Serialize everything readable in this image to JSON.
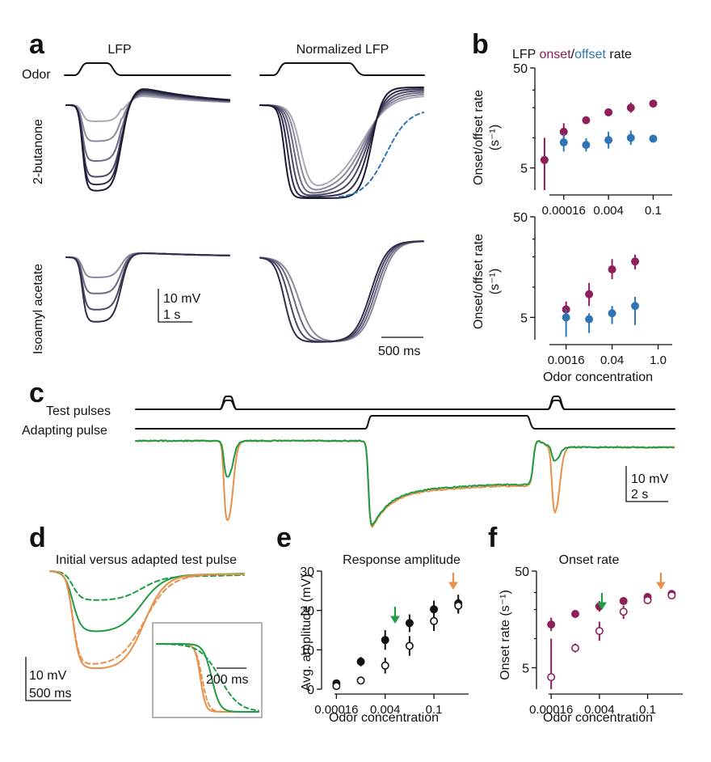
{
  "panels": {
    "a": {
      "label": "a",
      "col_titles": [
        "LFP",
        "Normalized LFP"
      ],
      "odor_label": "Odor",
      "row_labels": [
        "2-butanone",
        "Isoamyl acetate"
      ],
      "scalebar_left": [
        "10 mV",
        "1 s"
      ],
      "scalebar_right": "500 ms"
    },
    "b": {
      "label": "b",
      "title_prefix": "LFP ",
      "title_onset": "onset",
      "title_sep": "/",
      "title_offset": "offset",
      "title_suffix": " rate",
      "ylabel": "Onset/offset rate",
      "yunit": "(s⁻¹)",
      "xlabel": "Odor concentration"
    },
    "c": {
      "label": "c",
      "row_labels": [
        "Test pulses",
        "Adapting pulse"
      ],
      "scalebar": [
        "10 mV",
        "2 s"
      ]
    },
    "d": {
      "label": "d",
      "title": "Initial versus adapted test pulse",
      "scalebar": [
        "10 mV",
        "500 ms"
      ],
      "inset_scalebar": "200 ms"
    },
    "e": {
      "label": "e",
      "title": "Response amplitude",
      "ylabel": "Avg. amplitude (mV)",
      "xlabel": "Odor concentration"
    },
    "f": {
      "label": "f",
      "title": "Onset rate",
      "ylabel": "Onset rate (s⁻¹)",
      "xlabel": "Odor concentration"
    }
  },
  "colors": {
    "onset": "#8e1f5a",
    "offset": "#2f75b5",
    "green": "#1f9a45",
    "orange": "#e8904a",
    "dark": "#1b1b33"
  },
  "chart_data": [
    {
      "id": "b-top",
      "type": "scatter",
      "yscale": "log",
      "ylim": [
        3,
        50
      ],
      "yticks": [
        "5",
        "50"
      ],
      "categories": [
        "0.00016",
        "0.0008",
        "0.004",
        "0.02",
        "0.1"
      ],
      "xticks": [
        "0.00016",
        "0.004",
        "0.1"
      ],
      "series": [
        {
          "name": "onset",
          "x": [
            4e-05,
            0.00016,
            0.0008,
            0.004,
            0.02,
            0.1
          ],
          "y": [
            6,
            11.5,
            15,
            18,
            20,
            22
          ],
          "err": [
            [
              3,
              10
            ],
            [
              9.5,
              14
            ],
            [
              13.8,
              16.3
            ],
            [
              16.8,
              19.3
            ],
            [
              17.8,
              22.5
            ],
            [
              20.2,
              24
            ]
          ]
        },
        {
          "name": "offset",
          "x": [
            0.00016,
            0.0008,
            0.004,
            0.02,
            0.1
          ],
          "y": [
            9,
            8.5,
            9.5,
            10,
            9.8
          ],
          "err": [
            [
              7.3,
              11
            ],
            [
              7.3,
              9.9
            ],
            [
              7.8,
              11.5
            ],
            [
              8.5,
              11.8
            ],
            [
              9,
              10.7
            ]
          ]
        }
      ]
    },
    {
      "id": "b-bottom",
      "type": "scatter",
      "yscale": "log",
      "ylim": [
        3,
        50
      ],
      "yticks": [
        "5",
        "50"
      ],
      "xticks": [
        "0.0016",
        "0.04",
        "1.0"
      ],
      "series": [
        {
          "name": "onset",
          "x": [
            0.0016,
            0.008,
            0.04,
            0.2
          ],
          "y": [
            6,
            8.5,
            15,
            18
          ],
          "err": [
            [
              5.1,
              7.2
            ],
            [
              6.5,
              11
            ],
            [
              12,
              19
            ],
            [
              15,
              21
            ]
          ]
        },
        {
          "name": "offset",
          "x": [
            0.0016,
            0.008,
            0.04,
            0.2
          ],
          "y": [
            5,
            4.8,
            5.5,
            6.5
          ],
          "err": [
            [
              3.2,
              6
            ],
            [
              3.5,
              5.5
            ],
            [
              4.3,
              6.5
            ],
            [
              4.2,
              8
            ]
          ]
        }
      ]
    },
    {
      "id": "e",
      "type": "scatter",
      "ylim": [
        0,
        30
      ],
      "yticks": [
        "0",
        "10",
        "20",
        "30"
      ],
      "xticks": [
        "0.00016",
        "0.004",
        "0.1"
      ],
      "series": [
        {
          "name": "initial",
          "x": [
            0.00016,
            0.0008,
            0.004,
            0.02,
            0.1,
            0.5
          ],
          "y": [
            1.5,
            7,
            12.5,
            16.8,
            20.3,
            21.8
          ],
          "err": [
            [
              0.8,
              2.2
            ],
            [
              5.8,
              8.2
            ],
            [
              10,
              15
            ],
            [
              14.5,
              19
            ],
            [
              18,
              22.5
            ],
            [
              19.5,
              24
            ]
          ]
        },
        {
          "name": "adapted",
          "x": [
            0.00016,
            0.0008,
            0.004,
            0.02,
            0.1,
            0.5
          ],
          "y": [
            0.8,
            2.2,
            6,
            11,
            17.3,
            21.2
          ],
          "err": [
            [
              0.3,
              1.4
            ],
            [
              1.7,
              2.8
            ],
            [
              4,
              8
            ],
            [
              8.5,
              13.5
            ],
            [
              14.8,
              19.8
            ],
            [
              19.2,
              23
            ]
          ]
        }
      ]
    },
    {
      "id": "f",
      "type": "scatter",
      "yscale": "log",
      "ylim": [
        3,
        50
      ],
      "yticks": [
        "5",
        "50"
      ],
      "xticks": [
        "0.00016",
        "0.004",
        "0.1"
      ],
      "series": [
        {
          "name": "initial",
          "x": [
            0.00016,
            0.0008,
            0.004,
            0.02,
            0.1,
            0.5
          ],
          "y": [
            14,
            18,
            21.5,
            24.5,
            27,
            29
          ],
          "err": [
            [
              12,
              16.5
            ],
            [
              16.8,
              19.2
            ],
            [
              19,
              24.5
            ],
            [
              23.5,
              25.5
            ],
            [
              25,
              28.5
            ],
            [
              28,
              30
            ]
          ]
        },
        {
          "name": "adapted",
          "x": [
            0.00016,
            0.0008,
            0.004,
            0.02,
            0.1,
            0.5
          ],
          "y": [
            4,
            8,
            12,
            19,
            25,
            28
          ],
          "err": [
            [
              3,
              10
            ],
            [
              7.2,
              8.9
            ],
            [
              9.5,
              15
            ],
            [
              16,
              22
            ],
            [
              23.5,
              26.5
            ],
            [
              26.5,
              29.5
            ]
          ]
        }
      ]
    }
  ]
}
